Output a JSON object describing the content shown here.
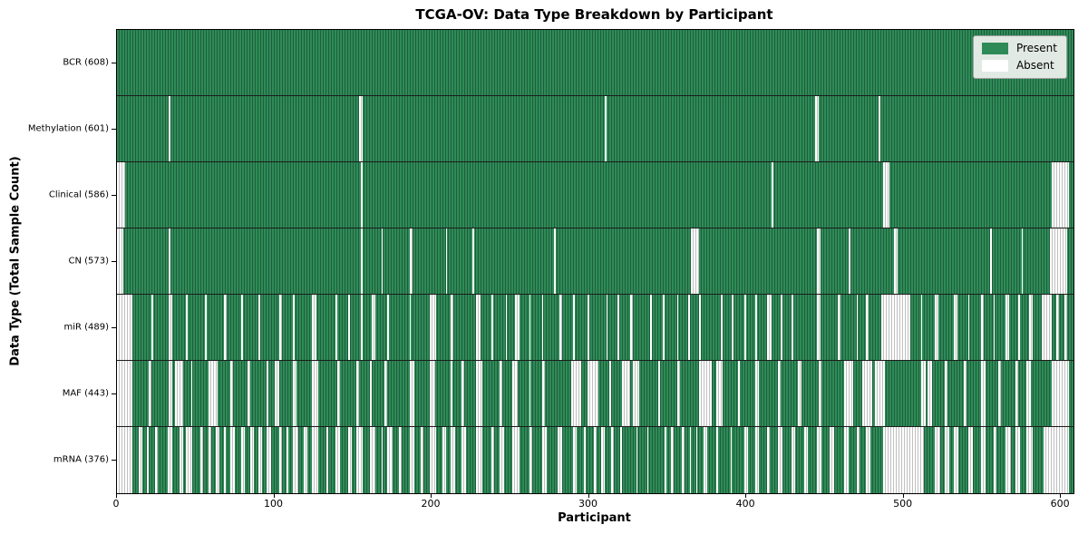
{
  "chart_data": {
    "type": "heatmap",
    "title": "TCGA-OV: Data Type Breakdown by Participant",
    "xlabel": "Participant",
    "ylabel": "Data Type (Total Sample Count)",
    "x_range": [
      0,
      608
    ],
    "x_ticks": [
      0,
      100,
      200,
      300,
      400,
      500,
      600
    ],
    "grid": false,
    "legend_position": "upper right",
    "legend": [
      {
        "label": "Present",
        "color": "#2e8b57"
      },
      {
        "label": "Absent",
        "color": "#ffffff"
      }
    ],
    "colors": {
      "present": "#2e8b57",
      "present_edge": "#1f5e3c",
      "absent": "#ffffff",
      "absent_edge": "#bfbfbf",
      "row_divider": "#1c1c1c"
    },
    "rows": [
      {
        "name": "BCR",
        "label": "BCR (608)",
        "present_count": 608,
        "absent_intervals": []
      },
      {
        "name": "Methylation",
        "label": "Methylation (601)",
        "present_count": 601,
        "absent_intervals": [
          [
            33,
            33
          ],
          [
            154,
            155
          ],
          [
            310,
            310
          ],
          [
            444,
            445
          ],
          [
            484,
            484
          ]
        ]
      },
      {
        "name": "Clinical",
        "label": "Clinical (586)",
        "present_count": 586,
        "absent_intervals": [
          [
            0,
            4
          ],
          [
            155,
            155
          ],
          [
            416,
            416
          ],
          [
            487,
            490
          ],
          [
            594,
            604
          ]
        ]
      },
      {
        "name": "CN",
        "label": "CN (573)",
        "present_count": 573,
        "absent_intervals": [
          [
            0,
            3
          ],
          [
            33,
            33
          ],
          [
            155,
            155
          ],
          [
            168,
            168
          ],
          [
            186,
            187
          ],
          [
            209,
            209
          ],
          [
            226,
            226
          ],
          [
            278,
            278
          ],
          [
            365,
            369
          ],
          [
            445,
            446
          ],
          [
            465,
            465
          ],
          [
            494,
            495
          ],
          [
            555,
            555
          ],
          [
            575,
            575
          ],
          [
            593,
            603
          ]
        ]
      },
      {
        "name": "miR",
        "label": "miR (489)",
        "present_count": 489,
        "absent_intervals": [
          [
            0,
            9
          ],
          [
            22,
            22
          ],
          [
            33,
            34
          ],
          [
            44,
            44
          ],
          [
            56,
            56
          ],
          [
            68,
            69
          ],
          [
            79,
            79
          ],
          [
            90,
            90
          ],
          [
            103,
            104
          ],
          [
            112,
            112
          ],
          [
            124,
            126
          ],
          [
            139,
            139
          ],
          [
            147,
            147
          ],
          [
            155,
            155
          ],
          [
            162,
            163
          ],
          [
            172,
            172
          ],
          [
            186,
            186
          ],
          [
            199,
            202
          ],
          [
            212,
            213
          ],
          [
            228,
            230
          ],
          [
            238,
            238
          ],
          [
            247,
            247
          ],
          [
            253,
            255
          ],
          [
            262,
            262
          ],
          [
            270,
            270
          ],
          [
            281,
            282
          ],
          [
            290,
            290
          ],
          [
            299,
            299
          ],
          [
            311,
            311
          ],
          [
            318,
            318
          ],
          [
            326,
            327
          ],
          [
            339,
            339
          ],
          [
            347,
            347
          ],
          [
            356,
            356
          ],
          [
            363,
            363
          ],
          [
            370,
            370
          ],
          [
            384,
            384
          ],
          [
            391,
            391
          ],
          [
            399,
            399
          ],
          [
            406,
            406
          ],
          [
            413,
            415
          ],
          [
            422,
            422
          ],
          [
            429,
            429
          ],
          [
            445,
            446
          ],
          [
            458,
            459
          ],
          [
            470,
            470
          ],
          [
            476,
            477
          ],
          [
            486,
            503
          ],
          [
            511,
            511
          ],
          [
            520,
            521
          ],
          [
            532,
            533
          ],
          [
            541,
            541
          ],
          [
            549,
            550
          ],
          [
            557,
            557
          ],
          [
            565,
            566
          ],
          [
            573,
            573
          ],
          [
            580,
            581
          ],
          [
            588,
            593
          ],
          [
            597,
            598
          ],
          [
            602,
            603
          ]
        ]
      },
      {
        "name": "MAF",
        "label": "MAF (443)",
        "present_count": 443,
        "absent_intervals": [
          [
            0,
            9
          ],
          [
            20,
            21
          ],
          [
            33,
            34
          ],
          [
            37,
            41
          ],
          [
            47,
            47
          ],
          [
            58,
            63
          ],
          [
            72,
            73
          ],
          [
            83,
            84
          ],
          [
            95,
            95
          ],
          [
            100,
            102
          ],
          [
            112,
            113
          ],
          [
            124,
            127
          ],
          [
            140,
            141
          ],
          [
            152,
            153
          ],
          [
            161,
            161
          ],
          [
            170,
            171
          ],
          [
            186,
            188
          ],
          [
            199,
            201
          ],
          [
            212,
            212
          ],
          [
            219,
            220
          ],
          [
            228,
            231
          ],
          [
            243,
            244
          ],
          [
            251,
            254
          ],
          [
            262,
            262
          ],
          [
            270,
            271
          ],
          [
            289,
            294
          ],
          [
            299,
            305
          ],
          [
            313,
            313
          ],
          [
            321,
            325
          ],
          [
            328,
            331
          ],
          [
            344,
            344
          ],
          [
            356,
            357
          ],
          [
            370,
            377
          ],
          [
            381,
            384
          ],
          [
            395,
            395
          ],
          [
            406,
            407
          ],
          [
            420,
            421
          ],
          [
            433,
            434
          ],
          [
            446,
            447
          ],
          [
            462,
            467
          ],
          [
            474,
            479
          ],
          [
            482,
            487
          ],
          [
            511,
            513
          ],
          [
            515,
            517
          ],
          [
            526,
            527
          ],
          [
            538,
            539
          ],
          [
            549,
            551
          ],
          [
            560,
            561
          ],
          [
            571,
            572
          ],
          [
            578,
            580
          ],
          [
            594,
            604
          ]
        ]
      },
      {
        "name": "mRNA",
        "label": "mRNA (376)",
        "present_count": 376,
        "absent_intervals": [
          [
            0,
            9
          ],
          [
            14,
            15
          ],
          [
            19,
            19
          ],
          [
            24,
            25
          ],
          [
            32,
            34
          ],
          [
            40,
            41
          ],
          [
            44,
            47
          ],
          [
            53,
            54
          ],
          [
            58,
            59
          ],
          [
            63,
            64
          ],
          [
            68,
            68
          ],
          [
            72,
            74
          ],
          [
            79,
            80
          ],
          [
            85,
            86
          ],
          [
            90,
            91
          ],
          [
            95,
            97
          ],
          [
            103,
            104
          ],
          [
            108,
            108
          ],
          [
            112,
            114
          ],
          [
            119,
            120
          ],
          [
            124,
            127
          ],
          [
            133,
            133
          ],
          [
            139,
            141
          ],
          [
            147,
            148
          ],
          [
            152,
            155
          ],
          [
            161,
            163
          ],
          [
            168,
            168
          ],
          [
            172,
            174
          ],
          [
            179,
            180
          ],
          [
            186,
            188
          ],
          [
            193,
            194
          ],
          [
            199,
            202
          ],
          [
            207,
            208
          ],
          [
            212,
            214
          ],
          [
            219,
            221
          ],
          [
            228,
            231
          ],
          [
            238,
            239
          ],
          [
            243,
            245
          ],
          [
            251,
            255
          ],
          [
            262,
            263
          ],
          [
            270,
            272
          ],
          [
            280,
            282
          ],
          [
            290,
            291
          ],
          [
            297,
            297
          ],
          [
            303,
            304
          ],
          [
            308,
            309
          ],
          [
            314,
            315
          ],
          [
            320,
            320
          ],
          [
            330,
            330
          ],
          [
            337,
            337
          ],
          [
            348,
            348
          ],
          [
            352,
            353
          ],
          [
            359,
            360
          ],
          [
            364,
            364
          ],
          [
            368,
            368
          ],
          [
            373,
            374
          ],
          [
            381,
            381
          ],
          [
            390,
            390
          ],
          [
            399,
            400
          ],
          [
            406,
            407
          ],
          [
            413,
            414
          ],
          [
            420,
            422
          ],
          [
            429,
            430
          ],
          [
            437,
            438
          ],
          [
            445,
            447
          ],
          [
            453,
            455
          ],
          [
            462,
            464
          ],
          [
            470,
            471
          ],
          [
            476,
            478
          ],
          [
            487,
            512
          ],
          [
            520,
            522
          ],
          [
            526,
            528
          ],
          [
            532,
            534
          ],
          [
            541,
            543
          ],
          [
            549,
            551
          ],
          [
            557,
            558
          ],
          [
            565,
            567
          ],
          [
            571,
            573
          ],
          [
            578,
            581
          ],
          [
            589,
            604
          ]
        ]
      }
    ]
  }
}
